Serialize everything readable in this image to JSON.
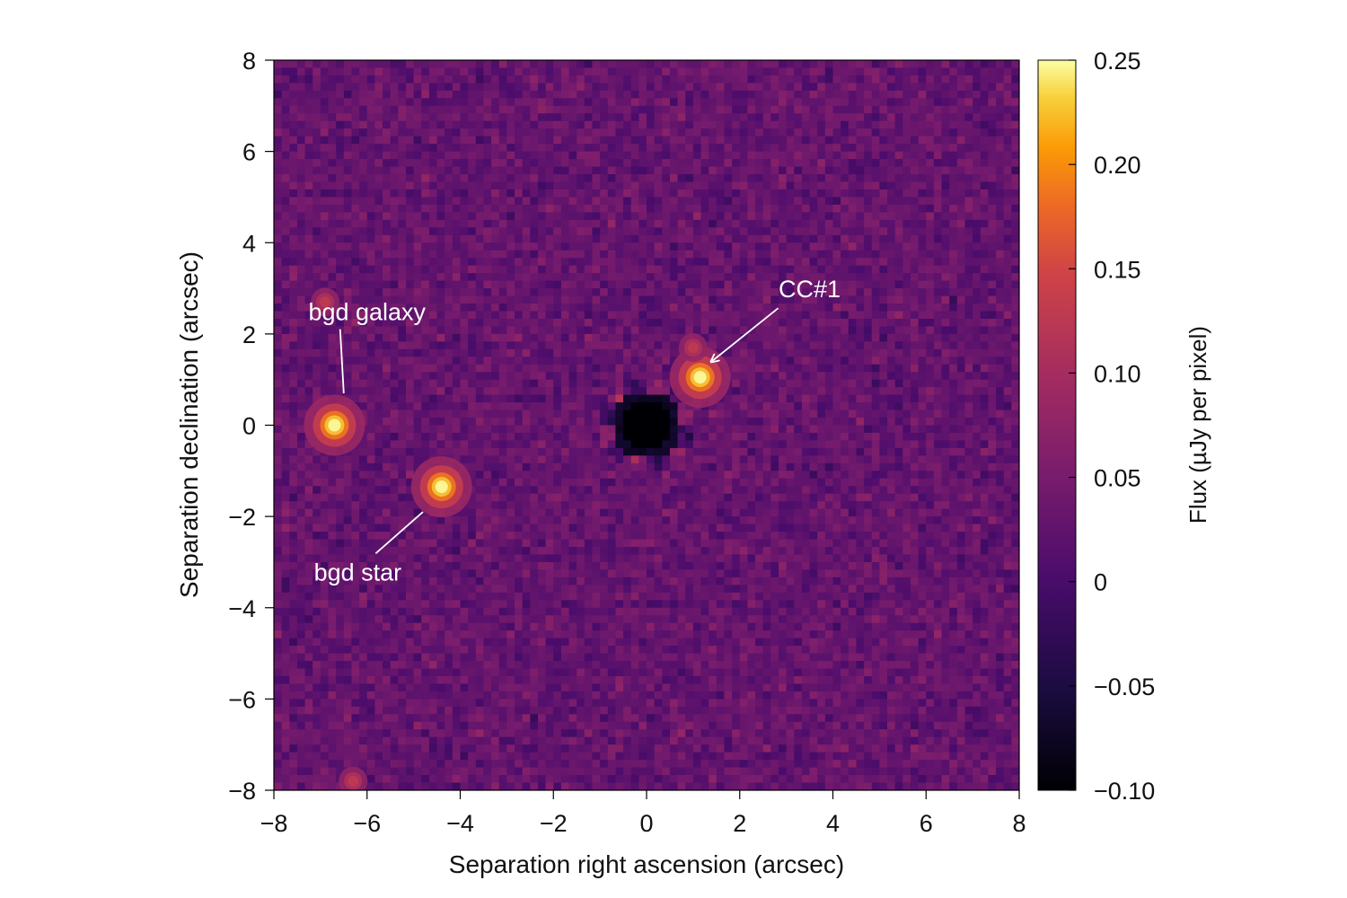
{
  "chart_data": {
    "type": "heatmap",
    "title": "",
    "xlabel": "Separation right ascension (arcsec)",
    "ylabel": "Separation declination (arcsec)",
    "xlim": [
      -8,
      8
    ],
    "ylim": [
      -8,
      8
    ],
    "x_ticks": [
      -8,
      -6,
      -4,
      -2,
      0,
      2,
      4,
      6,
      8
    ],
    "y_ticks": [
      -8,
      -6,
      -4,
      -2,
      0,
      2,
      4,
      6,
      8
    ],
    "x_tick_labels": [
      "−8",
      "−6",
      "−4",
      "−2",
      "0",
      "2",
      "4",
      "6",
      "8"
    ],
    "y_tick_labels": [
      "−8",
      "−6",
      "−4",
      "−2",
      "0",
      "2",
      "4",
      "6",
      "8"
    ],
    "grid": false,
    "colormap": "inferno",
    "colorbar": {
      "label": "Flux (µJy per pixel)",
      "range": [
        -0.1,
        0.25
      ],
      "ticks": [
        -0.1,
        -0.05,
        0,
        0.05,
        0.1,
        0.15,
        0.2,
        0.25
      ],
      "tick_labels": [
        "−0.10",
        "−0.05",
        "0",
        "0.05",
        "0.10",
        "0.15",
        "0.20",
        "0.25"
      ]
    },
    "background_flux": 0.03,
    "masked_center": {
      "x": 0.0,
      "y": 0.0
    },
    "sources": [
      {
        "name": "CC#1",
        "x": 1.15,
        "y": 1.05,
        "flux": 0.25
      },
      {
        "name": "bgd galaxy",
        "x": -6.7,
        "y": 0.0,
        "flux": 0.25
      },
      {
        "name": "bgd star",
        "x": -4.4,
        "y": -1.35,
        "flux": 0.25
      },
      {
        "name": "",
        "x": -6.9,
        "y": 2.7,
        "flux": 0.12
      },
      {
        "name": "",
        "x": -6.3,
        "y": -7.8,
        "flux": 0.12
      },
      {
        "name": "",
        "x": 1.0,
        "y": 1.7,
        "flux": 0.1
      }
    ],
    "annotations": [
      {
        "text": "CC#1",
        "x": 3.5,
        "y": 2.8,
        "arrow_to": {
          "x": 1.4,
          "y": 1.4
        }
      },
      {
        "text": "bgd galaxy",
        "x": -6.0,
        "y": 2.3,
        "line_to": {
          "x": -6.5,
          "y": 0.7
        }
      },
      {
        "text": "bgd star",
        "x": -6.2,
        "y": -3.4,
        "line_to": {
          "x": -4.8,
          "y": -1.9
        }
      }
    ]
  }
}
